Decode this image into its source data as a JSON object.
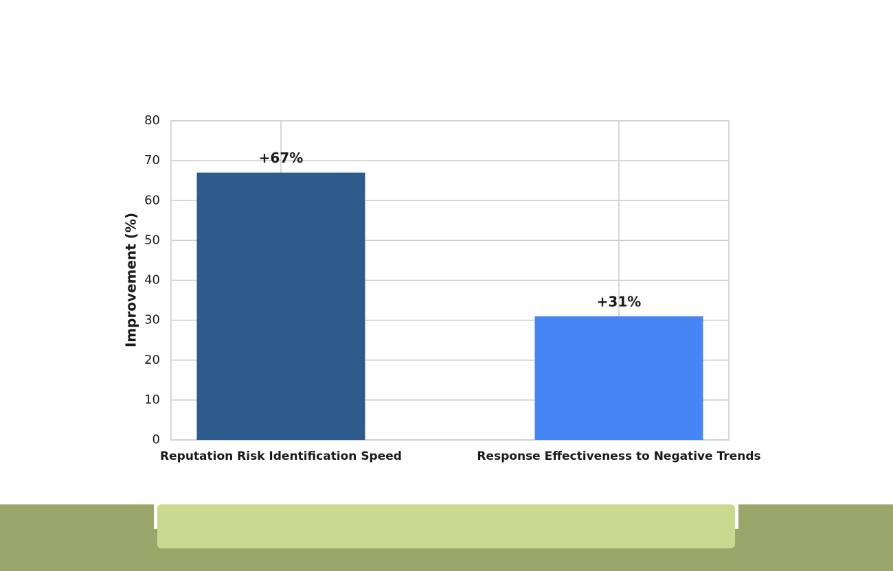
{
  "chart_data": {
    "type": "bar",
    "ylabel": "Improvement (%)",
    "categories": [
      "Reputation Risk Identification Speed",
      "Response Effectiveness to Negative Trends"
    ],
    "values": [
      67,
      31
    ],
    "value_labels": [
      "+67%",
      "+31%"
    ],
    "colors": [
      "#2d5b8c",
      "#4586f4"
    ],
    "ylim": [
      0,
      80
    ],
    "yticks": [
      0,
      10,
      20,
      30,
      40,
      50,
      60,
      70,
      80
    ],
    "grid": true
  }
}
